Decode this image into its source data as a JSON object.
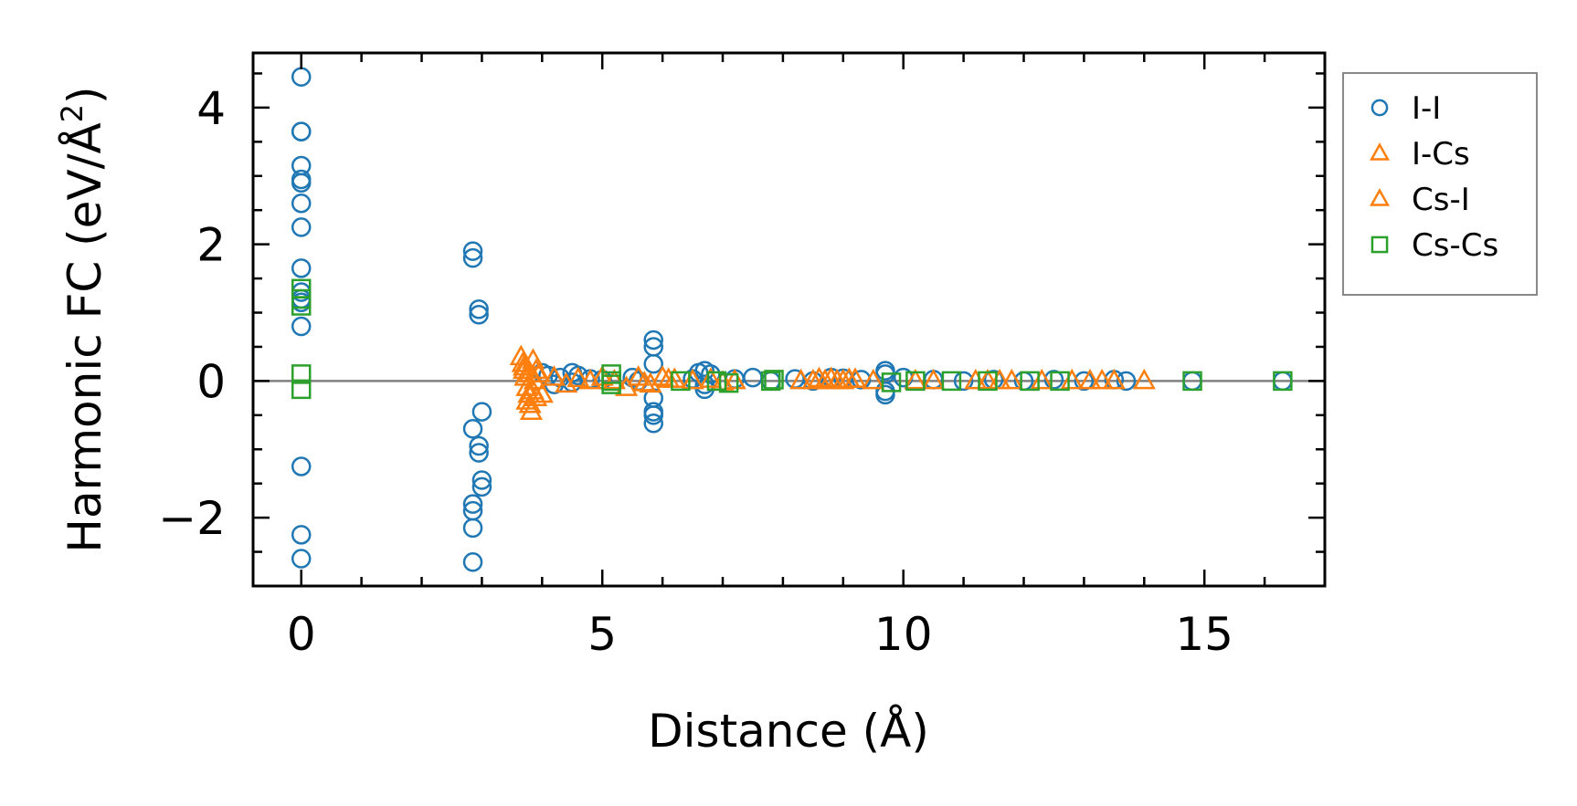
{
  "chart_data": {
    "type": "scatter",
    "xlabel": "Distance (Å)",
    "ylabel_main": "Harmonic FC (eV/Å",
    "ylabel_sup": "2",
    "ylabel_close": ")",
    "xlim": [
      -0.8,
      17.0
    ],
    "ylim": [
      -3.0,
      4.8
    ],
    "xticks": [
      0,
      5,
      10,
      15
    ],
    "xtick_labels": [
      "0",
      "5",
      "10",
      "15"
    ],
    "yticks": [
      -2,
      0,
      2,
      4
    ],
    "ytick_labels": [
      "−2",
      "0",
      "2",
      "4"
    ],
    "xminor_step": 1,
    "yminor_step": 0.5,
    "zero_line": true,
    "legend_position": "outside-right-top",
    "series": [
      {
        "name": "I-I",
        "marker": "circle",
        "color": "#1f77b4",
        "x": [
          0,
          0,
          0,
          0,
          0,
          0,
          0,
          0,
          0,
          0,
          0,
          0,
          0,
          0,
          0,
          0,
          2.85,
          2.85,
          2.95,
          2.95,
          2.85,
          3.0,
          2.95,
          2.95,
          3.0,
          3.0,
          2.85,
          2.85,
          2.85,
          2.85,
          4.0,
          4.1,
          4.2,
          4.3,
          4.5,
          4.5,
          4.6,
          4.8,
          5.0,
          5.5,
          5.6,
          5.85,
          5.85,
          5.85,
          5.85,
          5.85,
          5.85,
          5.85,
          6.5,
          6.6,
          6.7,
          6.7,
          6.7,
          6.8,
          7.2,
          7.5,
          7.8,
          8.2,
          8.5,
          8.8,
          9.0,
          9.3,
          9.7,
          9.7,
          9.7,
          9.7,
          10.0,
          10.5,
          11.0,
          11.5,
          12.0,
          12.5,
          13.0,
          13.5,
          13.7,
          14.8,
          16.3
        ],
        "y": [
          4.45,
          3.65,
          3.65,
          3.15,
          2.95,
          2.9,
          2.6,
          2.25,
          1.65,
          1.15,
          0.8,
          -1.25,
          -2.25,
          -2.6,
          1.3,
          1.2,
          1.9,
          1.8,
          1.05,
          0.97,
          -0.7,
          -0.45,
          -0.95,
          -1.05,
          -1.45,
          -1.55,
          -1.8,
          -1.9,
          -2.15,
          -2.65,
          0.12,
          0.08,
          -0.05,
          0.05,
          0.12,
          -0.02,
          0.08,
          0.03,
          0.02,
          0.05,
          0.0,
          0.6,
          0.5,
          0.25,
          -0.25,
          -0.45,
          -0.5,
          -0.62,
          0.03,
          0.12,
          0.15,
          -0.05,
          -0.12,
          0.1,
          0.03,
          0.05,
          0.0,
          0.03,
          0.0,
          0.05,
          0.04,
          0.02,
          0.15,
          0.1,
          -0.15,
          -0.2,
          0.05,
          0.02,
          0.0,
          0.02,
          0.0,
          0.02,
          0.0,
          0.02,
          0.0,
          0.0,
          0.0
        ]
      },
      {
        "name": "I-Cs",
        "marker": "triangle",
        "color": "#ff7f0e",
        "x": [
          3.65,
          3.68,
          3.7,
          3.72,
          3.75,
          3.78,
          3.8,
          3.82,
          3.85,
          3.88,
          3.9,
          3.95,
          4.2,
          4.4,
          4.8,
          5.0,
          5.4,
          5.6,
          5.8,
          6.0,
          6.2,
          6.5,
          6.8,
          7.0,
          8.5,
          8.6,
          8.7,
          8.8,
          8.9,
          9.0,
          9.2,
          9.5,
          10.5,
          11.2,
          11.6,
          11.8,
          12.8,
          13.3,
          13.5,
          14.0
        ],
        "y": [
          0.35,
          0.25,
          0.15,
          0.05,
          -0.1,
          -0.2,
          -0.35,
          -0.45,
          0.3,
          0.0,
          -0.25,
          0.1,
          0.05,
          -0.05,
          0.0,
          0.05,
          -0.1,
          0.05,
          -0.05,
          0.05,
          0.02,
          0.0,
          0.02,
          -0.02,
          0.0,
          0.03,
          0.0,
          0.03,
          0.0,
          0.0,
          0.02,
          0.0,
          0.0,
          0.0,
          0.0,
          0.0,
          0.0,
          0.0,
          0.0,
          0.0
        ]
      },
      {
        "name": "Cs-I",
        "marker": "triangle",
        "color": "#ff7f0e",
        "x": [
          3.7,
          3.75,
          3.8,
          3.85,
          3.9,
          4.0,
          4.6,
          5.2,
          5.7,
          6.1,
          7.2,
          8.3,
          9.1,
          10.2,
          11.4,
          12.3,
          13.1
        ],
        "y": [
          0.2,
          -0.3,
          0.1,
          -0.15,
          0.15,
          -0.2,
          0.03,
          0.0,
          -0.03,
          0.02,
          0.0,
          0.0,
          0.02,
          0.0,
          0.0,
          0.0,
          0.0
        ]
      },
      {
        "name": "Cs-Cs",
        "marker": "square",
        "color": "#2ca02c",
        "x": [
          0,
          0,
          0,
          0,
          0,
          5.15,
          5.15,
          5.15,
          6.3,
          6.9,
          7.1,
          7.8,
          7.85,
          9.8,
          10.2,
          10.8,
          11.4,
          12.1,
          12.6,
          14.8,
          16.3
        ],
        "y": [
          1.35,
          1.2,
          1.1,
          0.1,
          -0.12,
          0.1,
          0.0,
          -0.05,
          0.0,
          0.0,
          -0.03,
          0.0,
          0.02,
          -0.02,
          0.0,
          0.0,
          0.0,
          0.0,
          0.0,
          0.0,
          0.0
        ]
      }
    ]
  }
}
